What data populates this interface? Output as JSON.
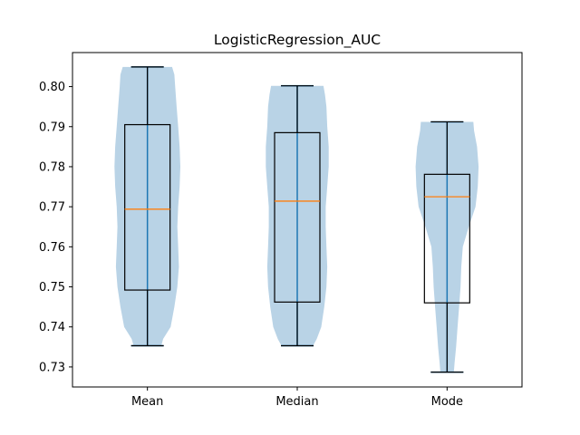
{
  "chart_data": {
    "type": "violin",
    "title": "LogisticRegression_AUC",
    "xlabel": "",
    "ylabel": "",
    "categories": [
      "Mean",
      "Median",
      "Mode"
    ],
    "ylim": [
      0.725,
      0.8085
    ],
    "yticks": [
      0.73,
      0.74,
      0.75,
      0.76,
      0.77,
      0.78,
      0.79,
      0.8
    ],
    "ytick_labels": [
      "0.73",
      "0.74",
      "0.75",
      "0.76",
      "0.77",
      "0.78",
      "0.79",
      "0.80"
    ],
    "grid": false,
    "colors": {
      "violin": "#b9d3e6",
      "whisker": "#1f77b4",
      "median": "#ff7f0e",
      "box": "#000000"
    },
    "series": [
      {
        "min": 0.7353,
        "q1": 0.7492,
        "median": 0.7694,
        "q3": 0.7905,
        "max": 0.8049,
        "density": [
          [
            0.7353,
            0.37
          ],
          [
            0.737,
            0.42
          ],
          [
            0.74,
            0.62
          ],
          [
            0.745,
            0.72
          ],
          [
            0.75,
            0.8
          ],
          [
            0.755,
            0.84
          ],
          [
            0.76,
            0.82
          ],
          [
            0.765,
            0.8
          ],
          [
            0.77,
            0.82
          ],
          [
            0.775,
            0.86
          ],
          [
            0.78,
            0.88
          ],
          [
            0.785,
            0.86
          ],
          [
            0.79,
            0.82
          ],
          [
            0.795,
            0.78
          ],
          [
            0.8,
            0.74
          ],
          [
            0.803,
            0.72
          ],
          [
            0.8049,
            0.66
          ]
        ]
      },
      {
        "min": 0.7353,
        "q1": 0.7462,
        "median": 0.7714,
        "q3": 0.7885,
        "max": 0.8002,
        "density": [
          [
            0.7353,
            0.42
          ],
          [
            0.737,
            0.52
          ],
          [
            0.74,
            0.64
          ],
          [
            0.745,
            0.72
          ],
          [
            0.75,
            0.78
          ],
          [
            0.755,
            0.8
          ],
          [
            0.76,
            0.78
          ],
          [
            0.765,
            0.76
          ],
          [
            0.77,
            0.76
          ],
          [
            0.775,
            0.8
          ],
          [
            0.78,
            0.84
          ],
          [
            0.785,
            0.84
          ],
          [
            0.79,
            0.8
          ],
          [
            0.795,
            0.78
          ],
          [
            0.798,
            0.74
          ],
          [
            0.8002,
            0.7
          ]
        ]
      },
      {
        "min": 0.7287,
        "q1": 0.746,
        "median": 0.7725,
        "q3": 0.7781,
        "max": 0.7912,
        "density": [
          [
            0.7287,
            0.18
          ],
          [
            0.731,
            0.2
          ],
          [
            0.735,
            0.24
          ],
          [
            0.74,
            0.28
          ],
          [
            0.745,
            0.32
          ],
          [
            0.75,
            0.36
          ],
          [
            0.755,
            0.38
          ],
          [
            0.76,
            0.42
          ],
          [
            0.765,
            0.58
          ],
          [
            0.77,
            0.76
          ],
          [
            0.775,
            0.82
          ],
          [
            0.78,
            0.84
          ],
          [
            0.785,
            0.8
          ],
          [
            0.789,
            0.72
          ],
          [
            0.7912,
            0.7
          ]
        ]
      }
    ]
  }
}
